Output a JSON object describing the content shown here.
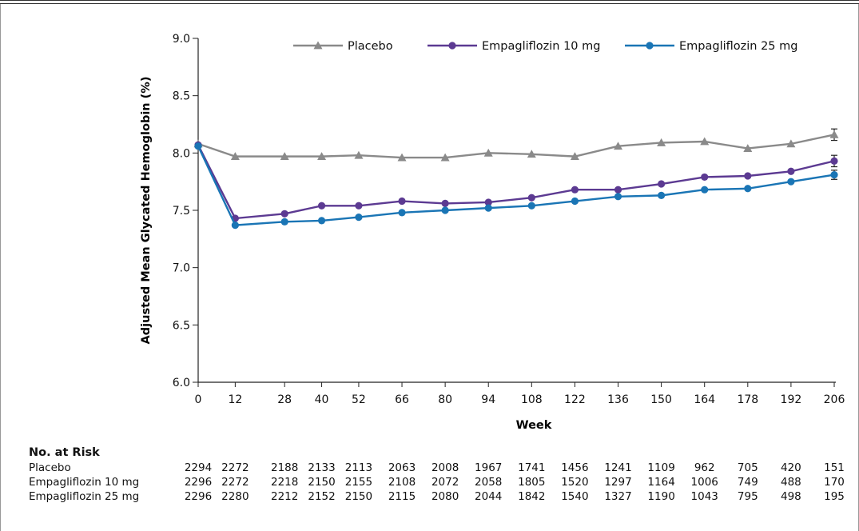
{
  "chart_data": {
    "type": "line",
    "ylabel": "Adjusted Mean Glycated Hemoglobin  (%)",
    "xlabel": "Week",
    "x": [
      0,
      12,
      28,
      40,
      52,
      66,
      80,
      94,
      108,
      122,
      136,
      150,
      164,
      178,
      192,
      206
    ],
    "x_tick_labels": [
      "0",
      "12",
      "28",
      "40",
      "52",
      "66",
      "80",
      "94",
      "108",
      "122",
      "136",
      "150",
      "164",
      "178",
      "192",
      "206"
    ],
    "ylim": [
      6.0,
      9.0
    ],
    "y_ticks": [
      "6.0",
      "6.5",
      "7.0",
      "7.5",
      "8.0",
      "8.5",
      "9.0"
    ],
    "grid": false,
    "legend_position": "top",
    "series": [
      {
        "name": "Placebo",
        "color": "#8a8a8a",
        "marker": "triangle",
        "values": [
          8.08,
          7.97,
          7.97,
          7.97,
          7.98,
          7.96,
          7.96,
          8.0,
          7.99,
          7.97,
          8.06,
          8.09,
          8.1,
          8.04,
          8.08,
          8.16
        ],
        "error_bar_last": 0.05
      },
      {
        "name": "Empagliflozin 10 mg",
        "color": "#5c3a92",
        "marker": "circle",
        "values": [
          8.07,
          7.43,
          7.47,
          7.54,
          7.54,
          7.58,
          7.56,
          7.57,
          7.61,
          7.68,
          7.68,
          7.73,
          7.79,
          7.8,
          7.84,
          7.93
        ],
        "error_bar_last": 0.05
      },
      {
        "name": "Empagliflozin 25 mg",
        "color": "#1a75b5",
        "marker": "circle",
        "values": [
          8.06,
          7.37,
          7.4,
          7.41,
          7.44,
          7.48,
          7.5,
          7.52,
          7.54,
          7.58,
          7.62,
          7.63,
          7.68,
          7.69,
          7.75,
          7.81
        ],
        "error_bar_last": 0.04
      }
    ]
  },
  "risk_table": {
    "title": "No. at Risk",
    "rows": [
      {
        "label": "Placebo",
        "values": [
          "2294",
          "2272",
          "2188",
          "2133",
          "2113",
          "2063",
          "2008",
          "1967",
          "1741",
          "1456",
          "1241",
          "1109",
          "962",
          "705",
          "420",
          "151"
        ]
      },
      {
        "label": "Empagliflozin 10 mg",
        "values": [
          "2296",
          "2272",
          "2218",
          "2150",
          "2155",
          "2108",
          "2072",
          "2058",
          "1805",
          "1520",
          "1297",
          "1164",
          "1006",
          "749",
          "488",
          "170"
        ]
      },
      {
        "label": "Empagliflozin 25 mg",
        "values": [
          "2296",
          "2280",
          "2212",
          "2152",
          "2150",
          "2115",
          "2080",
          "2044",
          "1842",
          "1540",
          "1327",
          "1190",
          "1043",
          "795",
          "498",
          "195"
        ]
      }
    ]
  }
}
